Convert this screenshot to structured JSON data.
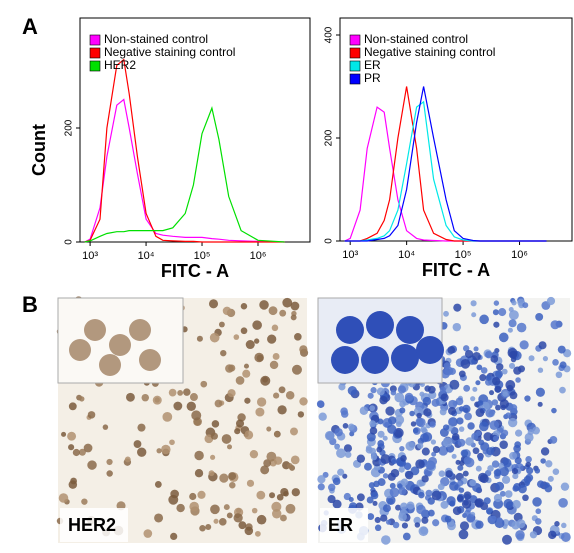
{
  "panel_labels": [
    "A",
    "B"
  ],
  "chart_data": [
    {
      "type": "line",
      "xscale": "log",
      "x_label": "FITC - A",
      "y_label": "Count",
      "x": [
        800,
        1000,
        1500,
        2000,
        3000,
        4000,
        5000,
        7000,
        10000,
        15000,
        20000,
        30000,
        50000,
        70000,
        100000,
        150000,
        200000,
        300000,
        500000,
        1000000,
        3000000
      ],
      "xlim": [
        660,
        8500000
      ],
      "xticks": [
        {
          "value": 1000,
          "label": "10³"
        },
        {
          "value": 10000,
          "label": "10⁴"
        },
        {
          "value": 100000,
          "label": "10⁵"
        },
        {
          "value": 1000000,
          "label": "10⁶"
        }
      ],
      "ylim": [
        0,
        393
      ],
      "yticks": [
        0,
        200
      ],
      "series": [
        {
          "name": "Non-stained control",
          "color": "#ff00ff",
          "values": [
            0,
            5,
            60,
            150,
            240,
            250,
            200,
            120,
            40,
            15,
            12,
            10,
            8,
            8,
            8,
            6,
            5,
            3,
            2,
            1,
            0
          ]
        },
        {
          "name": "Negative staining control",
          "color": "#ff0000",
          "values": [
            0,
            3,
            40,
            200,
            310,
            320,
            260,
            150,
            50,
            10,
            3,
            2,
            1,
            1,
            0,
            0,
            0,
            0,
            0,
            0,
            0
          ]
        },
        {
          "name": "HER2",
          "color": "#00e000",
          "values": [
            0,
            2,
            10,
            15,
            18,
            18,
            20,
            20,
            20,
            20,
            20,
            25,
            50,
            100,
            190,
            235,
            180,
            80,
            20,
            3,
            0
          ]
        }
      ]
    },
    {
      "type": "line",
      "xscale": "log",
      "x_label": "FITC - A",
      "x": [
        800,
        1000,
        1500,
        2000,
        3000,
        4000,
        5000,
        7000,
        10000,
        15000,
        20000,
        30000,
        50000,
        70000,
        100000,
        150000,
        200000,
        300000,
        500000,
        1000000,
        3000000
      ],
      "xlim": [
        660,
        8500000
      ],
      "xticks": [
        {
          "value": 1000,
          "label": "10³"
        },
        {
          "value": 10000,
          "label": "10⁴"
        },
        {
          "value": 100000,
          "label": "10⁵"
        },
        {
          "value": 1000000,
          "label": "10⁶"
        }
      ],
      "ylim": [
        0,
        433
      ],
      "yticks": [
        0,
        200,
        400
      ],
      "series": [
        {
          "name": "Non-stained control",
          "color": "#ff00ff",
          "values": [
            0,
            5,
            60,
            180,
            260,
            250,
            180,
            80,
            20,
            5,
            2,
            1,
            0,
            0,
            0,
            0,
            0,
            0,
            0,
            0,
            0
          ]
        },
        {
          "name": "Negative staining control",
          "color": "#ff0000",
          "values": [
            0,
            0,
            0,
            5,
            15,
            40,
            80,
            200,
            300,
            180,
            60,
            15,
            3,
            0,
            0,
            0,
            0,
            0,
            0,
            0,
            0
          ]
        },
        {
          "name": "ER",
          "color": "#00e8e8",
          "values": [
            0,
            0,
            0,
            2,
            5,
            10,
            20,
            60,
            150,
            260,
            270,
            120,
            30,
            8,
            2,
            0,
            0,
            0,
            0,
            0,
            0
          ]
        },
        {
          "name": "PR",
          "color": "#0000ff",
          "values": [
            0,
            0,
            0,
            0,
            3,
            5,
            10,
            30,
            100,
            230,
            300,
            200,
            80,
            20,
            5,
            1,
            0,
            0,
            0,
            0,
            0
          ]
        }
      ]
    }
  ],
  "images": [
    {
      "label": "HER2"
    },
    {
      "label": "ER"
    }
  ]
}
